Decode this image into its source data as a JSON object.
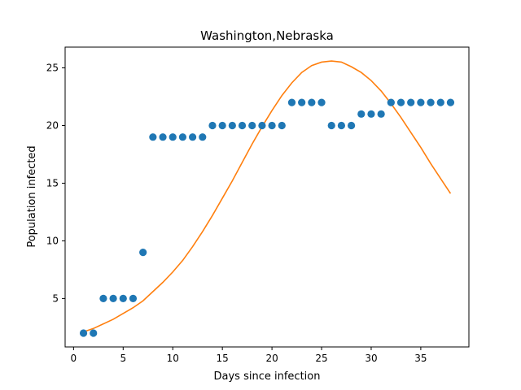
{
  "chart_data": {
    "type": "scatter",
    "title": "Washington,Nebraska",
    "xlabel": "Days since infection",
    "ylabel": "Population infected",
    "xlim": [
      -0.85,
      39.85
    ],
    "ylim": [
      0.8,
      26.8
    ],
    "xticks": [
      0,
      5,
      10,
      15,
      20,
      25,
      30,
      35
    ],
    "yticks": [
      5,
      10,
      15,
      20,
      25
    ],
    "grid": false,
    "series": [
      {
        "kind": "scatter",
        "color": "#1f77b4",
        "x": [
          1,
          2,
          3,
          4,
          5,
          6,
          7,
          8,
          9,
          10,
          11,
          12,
          13,
          14,
          15,
          16,
          17,
          18,
          19,
          20,
          21,
          22,
          23,
          24,
          25,
          26,
          27,
          28,
          29,
          30,
          31,
          32,
          33,
          34,
          35,
          36,
          37,
          38
        ],
        "y": [
          2,
          2,
          5,
          5,
          5,
          5,
          9,
          19,
          19,
          19,
          19,
          19,
          19,
          20,
          20,
          20,
          20,
          20,
          20,
          20,
          20,
          22,
          22,
          22,
          22,
          20,
          20,
          20,
          21,
          21,
          21,
          22,
          22,
          22,
          22,
          22,
          22,
          22
        ]
      },
      {
        "kind": "line",
        "color": "#ff7f0e",
        "x": [
          1,
          2,
          3,
          4,
          5,
          6,
          7,
          8,
          9,
          10,
          11,
          12,
          13,
          14,
          15,
          16,
          17,
          18,
          19,
          20,
          21,
          22,
          23,
          24,
          25,
          26,
          27,
          28,
          29,
          30,
          31,
          32,
          33,
          34,
          35,
          36,
          37,
          38
        ],
        "y": [
          2.1,
          2.4,
          2.8,
          3.2,
          3.7,
          4.2,
          4.8,
          5.6,
          6.4,
          7.3,
          8.3,
          9.5,
          10.8,
          12.2,
          13.7,
          15.2,
          16.8,
          18.4,
          19.9,
          21.3,
          22.6,
          23.7,
          24.6,
          25.2,
          25.5,
          25.6,
          25.5,
          25.1,
          24.6,
          23.9,
          23.0,
          21.9,
          20.7,
          19.4,
          18.1,
          16.7,
          15.4,
          14.1
        ]
      }
    ]
  }
}
